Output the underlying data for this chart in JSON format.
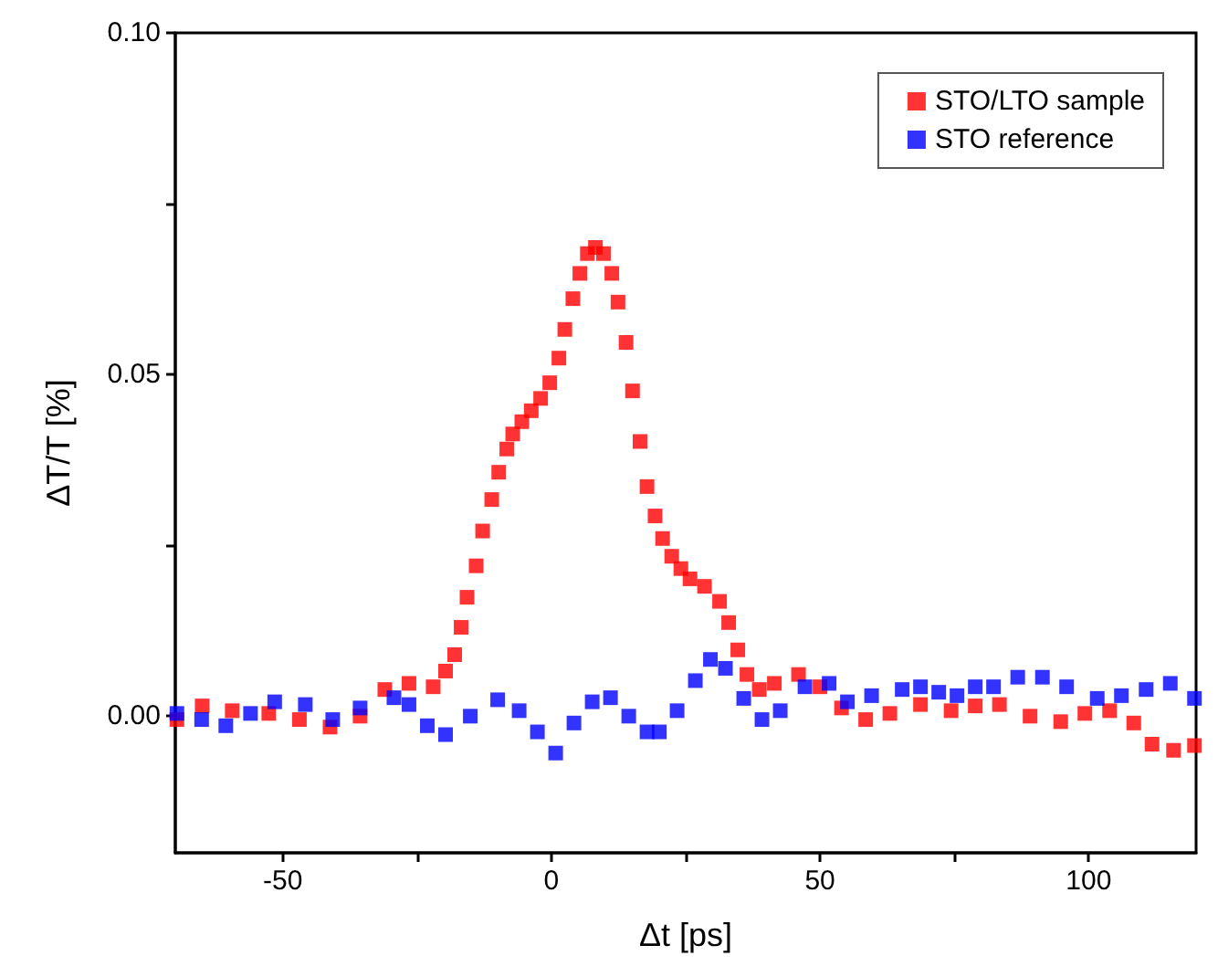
{
  "chart_data": {
    "type": "scatter",
    "xlabel": "Δt [ps]",
    "ylabel": "ΔT/T [%]",
    "xlim": [
      -70,
      120
    ],
    "ylim": [
      -0.02,
      0.1
    ],
    "xticks": [
      -50,
      {
        "value": -25,
        "label": null
      },
      0,
      {
        "value": 25,
        "label": null
      },
      50,
      {
        "value": 75,
        "label": null
      },
      100
    ],
    "yticks": [
      {
        "value": 0,
        "label": "0.00"
      },
      {
        "value": 0.025,
        "label": null
      },
      {
        "value": 0.05,
        "label": "0.05"
      },
      {
        "value": 0.075,
        "label": null
      },
      {
        "value": 0.1,
        "label": "0.10"
      }
    ],
    "grid": false,
    "legend": "top right",
    "marker": "square",
    "series": [
      {
        "name": "STO/LTO sample",
        "color": "#ff0000",
        "x": [
          -69.7,
          -65,
          -59.4,
          -52.6,
          -46.9,
          -41.2,
          -35.6,
          -31,
          -26.5,
          -22,
          -19.7,
          -18,
          -16.8,
          -15.7,
          -14,
          -12.8,
          -11.1,
          -9.8,
          -8.3,
          -7.2,
          -5.5,
          -3.75,
          -2,
          -0.3,
          1.4,
          2.5,
          4,
          5.3,
          6.7,
          8.2,
          9.7,
          11.25,
          12.4,
          13.9,
          15.1,
          16.5,
          17.8,
          19.3,
          20.7,
          22.4,
          24.1,
          25.8,
          28.5,
          31.3,
          33,
          34.7,
          36.4,
          38.7,
          41.5,
          46,
          50,
          54,
          58.5,
          63,
          68.7,
          74.4,
          78.9,
          83.4,
          89.1,
          94.8,
          99.3,
          103.9,
          108.4,
          111.8,
          115.8,
          119.7
        ],
        "values": [
          -0.0005,
          0.0015,
          0.0008,
          0.0004,
          -0.0005,
          -0.0016,
          0,
          0.0039,
          0.0048,
          0.0043,
          0.0066,
          0.009,
          0.013,
          0.0174,
          0.022,
          0.0271,
          0.0317,
          0.0357,
          0.0391,
          0.0413,
          0.0431,
          0.0447,
          0.0465,
          0.0488,
          0.0524,
          0.0566,
          0.0611,
          0.0648,
          0.0677,
          0.0686,
          0.0677,
          0.0648,
          0.0606,
          0.0547,
          0.0476,
          0.0402,
          0.0336,
          0.0293,
          0.026,
          0.0234,
          0.0216,
          0.0201,
          0.019,
          0.0168,
          0.0137,
          0.0097,
          0.0061,
          0.0039,
          0.0048,
          0.0061,
          0.0043,
          0.0012,
          -0.0005,
          0.0004,
          0.0017,
          0.0008,
          0.0015,
          0.0017,
          0,
          -0.0008,
          0.0004,
          0.0008,
          -0.001,
          -0.0041,
          -0.005,
          -0.0043
        ]
      },
      {
        "name": "STO reference",
        "color": "#0000ff",
        "x": [
          -69.7,
          -65.1,
          -60.6,
          -56,
          -51.5,
          -45.8,
          -40.7,
          -35.6,
          -29.3,
          -26.5,
          -23.1,
          -19.7,
          -15.1,
          -10,
          -6,
          -2.6,
          0.8,
          4.2,
          7.6,
          11,
          14.4,
          17.8,
          20.1,
          23.4,
          26.8,
          29.6,
          32.4,
          35.8,
          39.2,
          42.6,
          47.2,
          51.7,
          55.1,
          59.6,
          65.3,
          68.7,
          72.1,
          75.5,
          78.9,
          82.3,
          86.8,
          91.4,
          95.9,
          101.6,
          106.1,
          110.7,
          115.2,
          119.7
        ],
        "values": [
          0.0004,
          -0.0005,
          -0.0014,
          0.0004,
          0.0021,
          0.0017,
          -0.0005,
          0.0012,
          0.0027,
          0.0017,
          -0.0014,
          -0.0027,
          0,
          0.0024,
          0.0008,
          -0.0023,
          -0.0054,
          -0.001,
          0.0021,
          0.0027,
          0,
          -0.0023,
          -0.0023,
          0.0008,
          0.0052,
          0.0083,
          0.007,
          0.0026,
          -0.0005,
          0.0008,
          0.0043,
          0.0048,
          0.0021,
          0.003,
          0.0039,
          0.0043,
          0.0035,
          0.003,
          0.0043,
          0.0043,
          0.0057,
          0.0057,
          0.0043,
          0.0026,
          0.003,
          0.0039,
          0.0048,
          0.0026
        ]
      }
    ]
  }
}
